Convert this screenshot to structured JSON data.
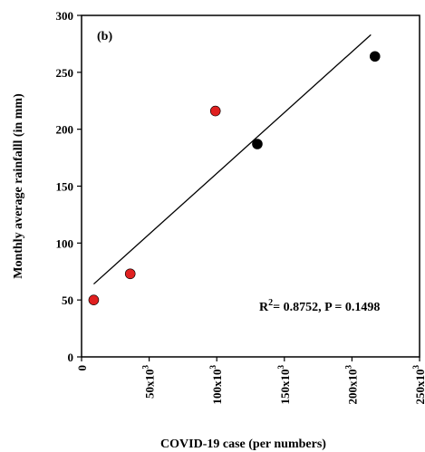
{
  "chart_data": {
    "type": "scatter",
    "panel_label": "(b)",
    "xlabel": "COVID-19 case (per numbers)",
    "ylabel": "Monthly average rainfalll (in mm)",
    "xlim": [
      0,
      250000
    ],
    "ylim": [
      0,
      300
    ],
    "x_ticks": [
      {
        "value": 0,
        "label": "0"
      },
      {
        "value": 50000,
        "label": "50x10",
        "sup": "3"
      },
      {
        "value": 100000,
        "label": "100x10",
        "sup": "3"
      },
      {
        "value": 150000,
        "label": "150x10",
        "sup": "3"
      },
      {
        "value": 200000,
        "label": "200x10",
        "sup": "3"
      },
      {
        "value": 250000,
        "label": "250x10",
        "sup": "3"
      }
    ],
    "y_ticks": [
      {
        "value": 0,
        "label": "0"
      },
      {
        "value": 50,
        "label": "50"
      },
      {
        "value": 100,
        "label": "100"
      },
      {
        "value": 150,
        "label": "150"
      },
      {
        "value": 200,
        "label": "200"
      },
      {
        "value": 250,
        "label": "250"
      },
      {
        "value": 300,
        "label": "300"
      }
    ],
    "series": [
      {
        "color": "#e02020",
        "points": [
          {
            "x": 9000,
            "y": 50
          },
          {
            "x": 36000,
            "y": 73
          },
          {
            "x": 99000,
            "y": 216
          }
        ]
      },
      {
        "color": "#000000",
        "points": [
          {
            "x": 130000,
            "y": 187
          },
          {
            "x": 217000,
            "y": 264
          }
        ]
      }
    ],
    "fit_line": {
      "x": [
        9000,
        214000
      ],
      "y": [
        64,
        283
      ]
    },
    "annotation": {
      "prefix": "R",
      "sup": "2",
      "text": "= 0.8752, P = 0.1498"
    },
    "grid": false,
    "legend": "none"
  }
}
